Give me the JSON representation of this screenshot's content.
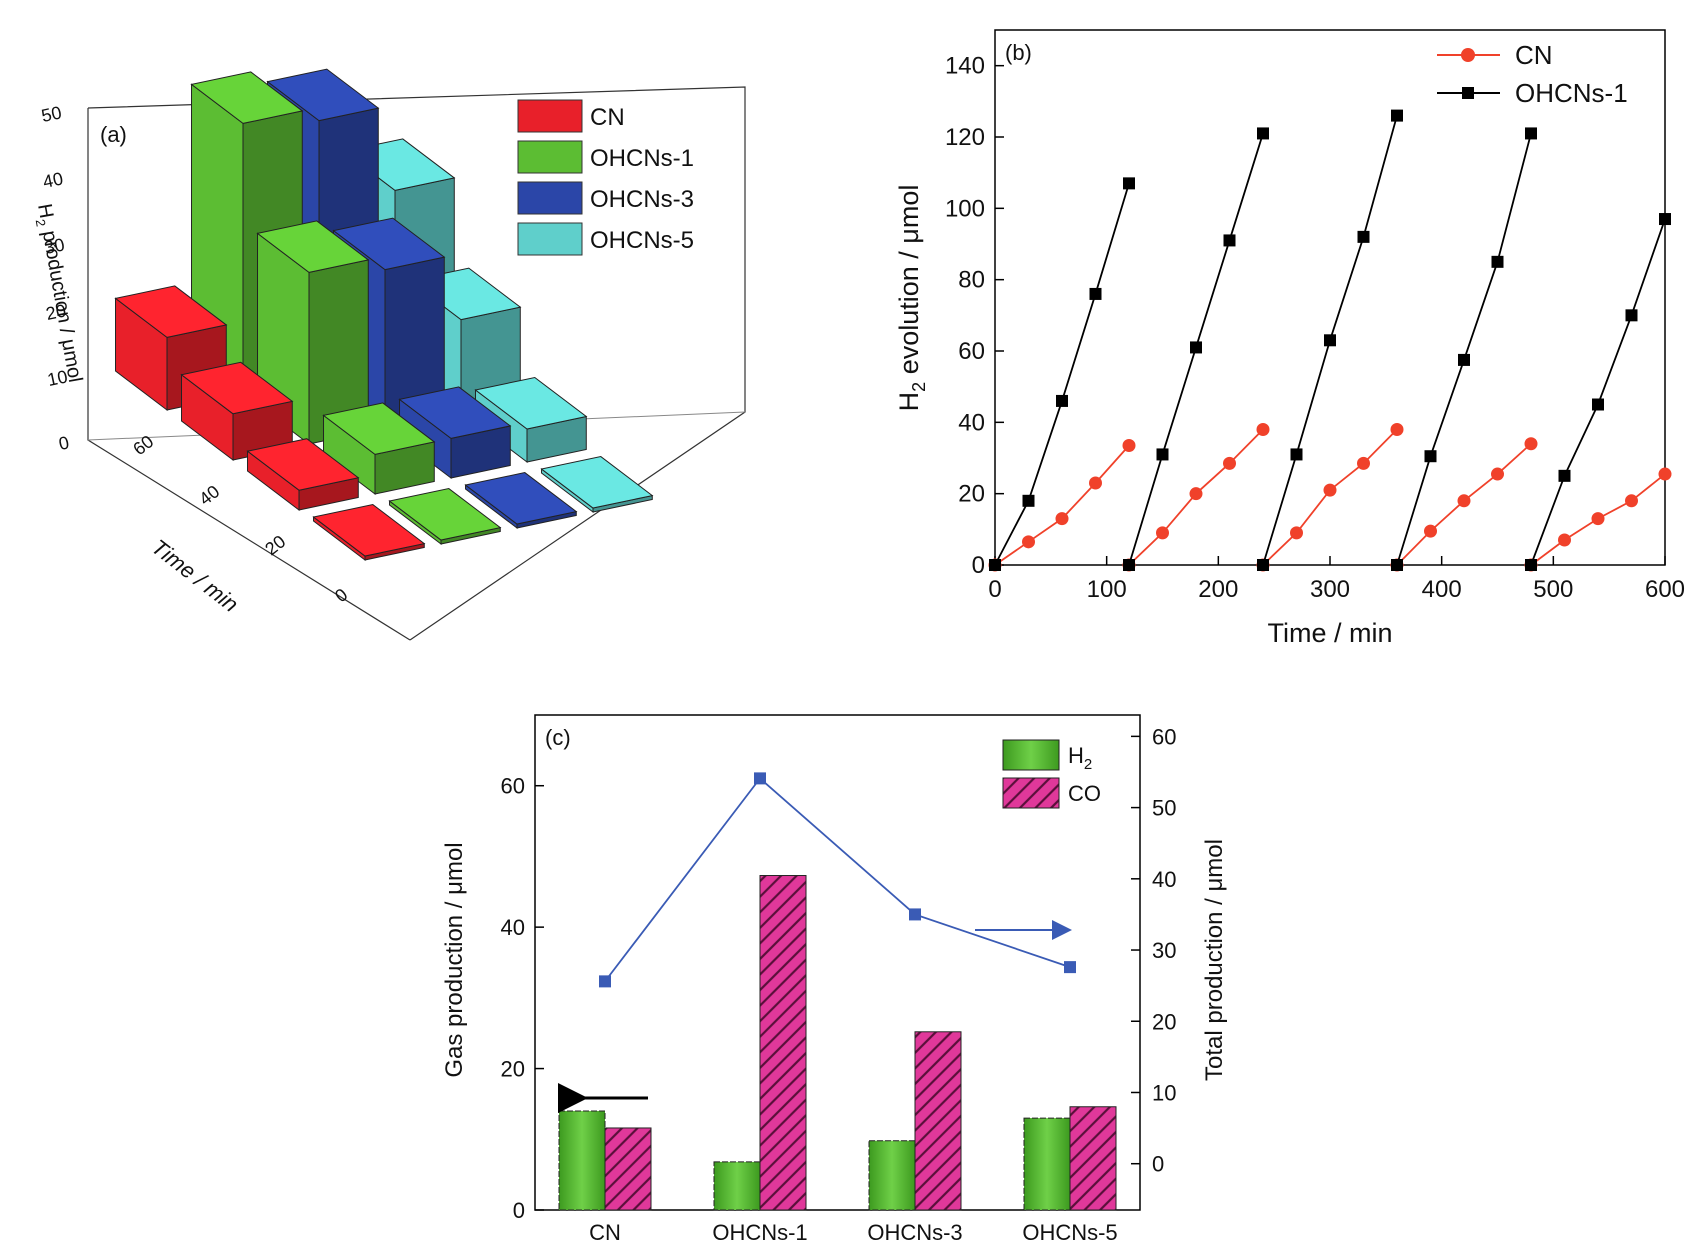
{
  "chart_data": [
    {
      "panel": "(a)",
      "type": "bar3d",
      "ylabel": "H2 production / μmol",
      "ylabel_main": "H",
      "ylabel_sub": "2",
      "ylabel_rest": " production / μmol",
      "xlabel": "Time / min",
      "z_ticks": [
        0,
        10,
        20,
        30,
        40,
        50
      ],
      "time_ticks": [
        0,
        20,
        40,
        60
      ],
      "colors": {
        "CN": "#e8202a",
        "OHCNs-1": "#5cbd33",
        "OHCNs-3": "#2b46a8",
        "OHCNs-5": "#5fcfcb"
      },
      "series": [
        {
          "name": "CN",
          "values": [
            0,
            3,
            7,
            11
          ]
        },
        {
          "name": "OHCNs-1",
          "values": [
            0,
            6,
            26,
            41
          ]
        },
        {
          "name": "OHCNs-3",
          "values": [
            0,
            6,
            24,
            39
          ]
        },
        {
          "name": "OHCNs-5",
          "values": [
            0,
            5,
            14,
            26
          ]
        }
      ]
    },
    {
      "panel": "(b)",
      "type": "line",
      "xlabel": "Time / min",
      "ylabel_main": "H",
      "ylabel_sub": "2",
      "ylabel_rest": " evolution / μmol",
      "xlim": [
        0,
        600
      ],
      "ylim": [
        0,
        150
      ],
      "x_ticks": [
        0,
        100,
        200,
        300,
        400,
        500,
        600
      ],
      "y_ticks": [
        0,
        20,
        40,
        60,
        80,
        100,
        120,
        140
      ],
      "series": [
        {
          "name": "CN",
          "color": "#f0412a",
          "marker": "circle",
          "cycles": [
            {
              "x": [
                0,
                30,
                60,
                90,
                120
              ],
              "y": [
                0,
                6.5,
                13,
                23,
                33.5
              ]
            },
            {
              "x": [
                120,
                150,
                180,
                210,
                240
              ],
              "y": [
                0,
                9,
                20,
                28.5,
                38
              ]
            },
            {
              "x": [
                240,
                270,
                300,
                330,
                360
              ],
              "y": [
                0,
                9,
                21,
                28.5,
                38
              ]
            },
            {
              "x": [
                360,
                390,
                420,
                450,
                480
              ],
              "y": [
                0,
                9.5,
                18,
                25.5,
                34
              ]
            },
            {
              "x": [
                480,
                510,
                540,
                570,
                600
              ],
              "y": [
                0,
                7,
                13,
                18,
                25.5
              ]
            }
          ]
        },
        {
          "name": "OHCNs-1",
          "color": "#000000",
          "marker": "square",
          "cycles": [
            {
              "x": [
                0,
                30,
                60,
                90,
                120
              ],
              "y": [
                0,
                18,
                46,
                76,
                107
              ]
            },
            {
              "x": [
                120,
                150,
                180,
                210,
                240
              ],
              "y": [
                0,
                31,
                61,
                91,
                121
              ]
            },
            {
              "x": [
                240,
                270,
                300,
                330,
                360
              ],
              "y": [
                0,
                31,
                63,
                92,
                126
              ]
            },
            {
              "x": [
                360,
                390,
                420,
                450,
                480
              ],
              "y": [
                0,
                30.5,
                57.5,
                85,
                121
              ]
            },
            {
              "x": [
                480,
                510,
                540,
                570,
                600
              ],
              "y": [
                0,
                25,
                45,
                70,
                97
              ]
            }
          ]
        }
      ]
    },
    {
      "panel": "(c)",
      "type": "bar",
      "categories": [
        "CN",
        "OHCNs-1",
        "OHCNs-3",
        "OHCNs-5"
      ],
      "ylabel": "Gas production / μmol",
      "ylabel2": "Total production / μmol",
      "ylim": [
        0,
        70
      ],
      "ylim2": [
        -6.5,
        63
      ],
      "y_ticks": [
        0,
        20,
        40,
        60
      ],
      "y2_ticks": [
        0,
        10,
        20,
        30,
        40,
        50,
        60
      ],
      "series": [
        {
          "name": "H2",
          "name_main": "H",
          "name_sub": "2",
          "color": "#5cbd33",
          "values": [
            14,
            6.8,
            9.8,
            13
          ]
        },
        {
          "name": "CO",
          "color": "#e0389a",
          "hatch": true,
          "values": [
            11.6,
            47.3,
            25.2,
            14.6
          ]
        }
      ],
      "total_series": {
        "color": "#3a5bb5",
        "values": [
          25.6,
          54.1,
          35.0,
          27.6
        ]
      }
    }
  ]
}
